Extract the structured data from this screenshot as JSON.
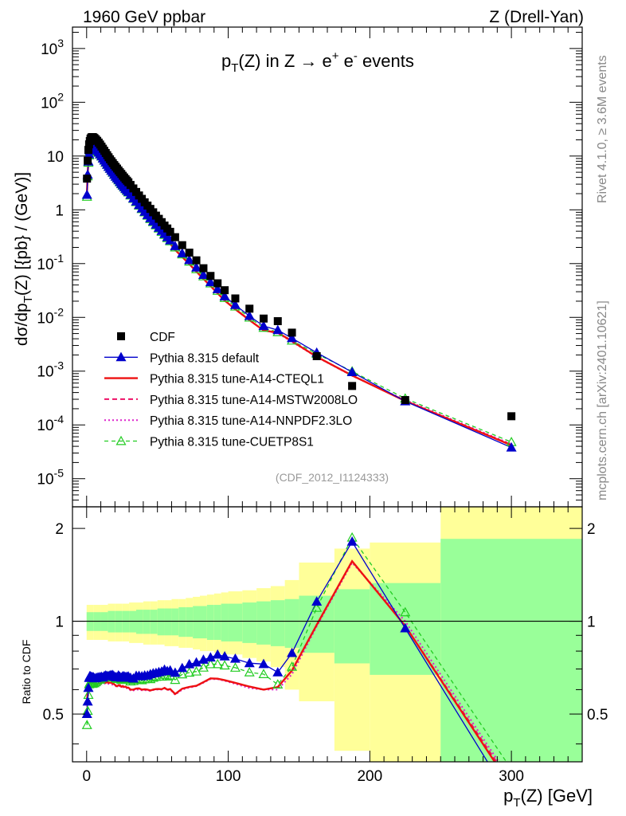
{
  "header": {
    "left": "1960 GeV ppbar",
    "right": "Z (Drell-Yan)",
    "title": "p_T(Z) in Z → e⁺ e⁻ events",
    "rivet": "Rivet 4.1.0, ≥ 3.6M events",
    "mcplots": "mcplots.cern.ch [arXiv:2401.10621]",
    "analysis": "(CDF_2012_I1124333)"
  },
  "colors": {
    "cdf": "#000000",
    "default": "#0000cc",
    "cteq": "#ee1111",
    "mstw": "#ee1166",
    "nnpdf": "#dd22cc",
    "cuetp": "#22cc22",
    "band_stat": "#99ff99",
    "band_tot": "#ffff99"
  },
  "chart_data": [
    {
      "type": "scatter",
      "name": "main",
      "title": "p_T(Z) in Z → e⁺ e⁻ events",
      "ylabel": "dσ/dp_T(Z) [{pb} / (GeV)]",
      "xlabel": "p_T(Z) [GeV]",
      "yscale": "log",
      "xlim": [
        -10,
        350
      ],
      "ylim": [
        3e-06,
        2500
      ],
      "x_ticks": [
        0,
        100,
        200,
        300
      ],
      "y_tick_labels": [
        "10^{-5}",
        "10^{-4}",
        "10^{-3}",
        "10^{-2}",
        "10^{-1}",
        "1",
        "10",
        "10^{2}",
        "10^{3}"
      ],
      "x": [
        0.25,
        0.75,
        1.25,
        1.75,
        2.25,
        2.75,
        3.25,
        3.75,
        4.25,
        4.75,
        5.5,
        6.5,
        7.5,
        8.5,
        9.5,
        10.5,
        11.5,
        12.5,
        13.5,
        14.5,
        15.5,
        16.5,
        17.5,
        18.5,
        19.5,
        20.5,
        21.5,
        22.5,
        23.5,
        24.5,
        25.5,
        26.5,
        27.5,
        28.5,
        29.5,
        31,
        33,
        35,
        37,
        39,
        41,
        43,
        45,
        47,
        49,
        51,
        53,
        55,
        57,
        59,
        62.5,
        67.5,
        72.5,
        77.5,
        82.5,
        87.5,
        92.5,
        97.5,
        105,
        115,
        125,
        135,
        145,
        162.5,
        187.5,
        225,
        300
      ],
      "cdf": [
        3.8,
        8.2,
        13.0,
        16.5,
        19.0,
        21.0,
        22.0,
        22.5,
        22.5,
        22.2,
        21.6,
        20.5,
        19.2,
        17.8,
        16.4,
        15.0,
        13.7,
        12.5,
        11.4,
        10.4,
        9.5,
        8.7,
        8.0,
        7.4,
        6.8,
        6.3,
        5.85,
        5.4,
        5.0,
        4.65,
        4.3,
        4.0,
        3.72,
        3.48,
        3.25,
        2.9,
        2.5,
        2.15,
        1.85,
        1.6,
        1.38,
        1.2,
        1.04,
        0.9,
        0.78,
        0.68,
        0.59,
        0.51,
        0.45,
        0.39,
        0.31,
        0.22,
        0.16,
        0.115,
        0.082,
        0.059,
        0.043,
        0.032,
        0.0225,
        0.0145,
        0.0095,
        0.0085,
        0.0052,
        0.0019,
        0.00053,
        0.00029,
        0.000145
      ],
      "series": [
        {
          "name": "Pythia 8.315 default",
          "key": "default",
          "values": [
            1.9,
            4.5,
            7.9,
            10.8,
            12.6,
            13.9,
            14.5,
            14.8,
            14.8,
            14.6,
            14.1,
            13.4,
            12.6,
            11.7,
            10.8,
            9.9,
            9.0,
            8.3,
            7.6,
            6.9,
            6.3,
            5.8,
            5.35,
            4.95,
            4.5,
            4.15,
            3.85,
            3.6,
            3.3,
            3.05,
            2.85,
            2.65,
            2.45,
            2.3,
            2.15,
            1.9,
            1.63,
            1.43,
            1.23,
            1.06,
            0.92,
            0.8,
            0.7,
            0.61,
            0.53,
            0.465,
            0.405,
            0.355,
            0.31,
            0.27,
            0.211,
            0.155,
            0.116,
            0.0845,
            0.0615,
            0.045,
            0.0335,
            0.0246,
            0.017,
            0.0106,
            0.0069,
            0.0058,
            0.0041,
            0.0022,
            0.00096,
            0.000275,
            3.8e-05
          ]
        },
        {
          "name": "Pythia 8.315 tune-A14-CTEQL1",
          "key": "cteq",
          "values": [
            2.1,
            4.8,
            8.1,
            10.9,
            12.6,
            13.7,
            14.1,
            14.3,
            14.2,
            14.0,
            13.5,
            12.8,
            12.0,
            11.2,
            10.3,
            9.5,
            8.7,
            7.9,
            7.2,
            6.6,
            6.0,
            5.5,
            5.05,
            4.65,
            4.25,
            3.9,
            3.6,
            3.35,
            3.1,
            2.85,
            2.65,
            2.45,
            2.28,
            2.12,
            1.98,
            1.74,
            1.5,
            1.3,
            1.12,
            0.96,
            0.83,
            0.72,
            0.62,
            0.54,
            0.47,
            0.41,
            0.355,
            0.31,
            0.27,
            0.235,
            0.18,
            0.133,
            0.098,
            0.071,
            0.052,
            0.0385,
            0.028,
            0.0206,
            0.0142,
            0.0089,
            0.0057,
            0.0052,
            0.0036,
            0.00185,
            0.00083,
            0.00028,
            4.2e-05
          ]
        },
        {
          "name": "Pythia 8.315 tune-A14-MSTW2008LO",
          "key": "mstw",
          "values": [
            2.05,
            4.7,
            8.0,
            10.8,
            12.5,
            13.7,
            14.1,
            14.3,
            14.2,
            14.0,
            13.5,
            12.8,
            12.0,
            11.2,
            10.3,
            9.5,
            8.7,
            7.9,
            7.2,
            6.6,
            6.0,
            5.5,
            5.05,
            4.65,
            4.25,
            3.9,
            3.6,
            3.35,
            3.1,
            2.85,
            2.65,
            2.45,
            2.28,
            2.12,
            1.98,
            1.74,
            1.5,
            1.3,
            1.12,
            0.96,
            0.83,
            0.72,
            0.62,
            0.54,
            0.47,
            0.41,
            0.355,
            0.31,
            0.27,
            0.235,
            0.18,
            0.133,
            0.098,
            0.071,
            0.052,
            0.0385,
            0.028,
            0.0206,
            0.0142,
            0.0089,
            0.0057,
            0.0052,
            0.0036,
            0.00185,
            0.00083,
            0.00028,
            4.3e-05
          ]
        },
        {
          "name": "Pythia 8.315 tune-A14-NNPDF2.3LO",
          "key": "nnpdf",
          "values": [
            2.0,
            4.6,
            7.9,
            10.7,
            12.4,
            13.6,
            14.0,
            14.2,
            14.1,
            13.9,
            13.4,
            12.7,
            11.9,
            11.1,
            10.2,
            9.4,
            8.6,
            7.85,
            7.15,
            6.55,
            5.95,
            5.45,
            5.0,
            4.6,
            4.2,
            3.88,
            3.58,
            3.32,
            3.08,
            2.84,
            2.63,
            2.44,
            2.27,
            2.11,
            1.97,
            1.73,
            1.49,
            1.29,
            1.11,
            0.955,
            0.825,
            0.715,
            0.618,
            0.538,
            0.468,
            0.408,
            0.354,
            0.309,
            0.269,
            0.234,
            0.179,
            0.132,
            0.0975,
            0.0708,
            0.0518,
            0.0383,
            0.0279,
            0.0205,
            0.0141,
            0.0088,
            0.0057,
            0.0051,
            0.0035,
            0.00183,
            0.00082,
            0.00029,
            4.4e-05
          ]
        },
        {
          "name": "Pythia 8.315 tune-CUETP8S1",
          "key": "cuetp",
          "values": [
            1.75,
            4.2,
            7.5,
            10.3,
            12.0,
            13.2,
            13.8,
            14.1,
            14.1,
            14.0,
            13.6,
            13.0,
            12.3,
            11.5,
            10.6,
            9.8,
            9.0,
            8.2,
            7.5,
            6.9,
            6.3,
            5.8,
            5.3,
            4.9,
            4.48,
            4.12,
            3.8,
            3.52,
            3.25,
            3.0,
            2.8,
            2.6,
            2.42,
            2.25,
            2.1,
            1.85,
            1.6,
            1.39,
            1.2,
            1.03,
            0.895,
            0.78,
            0.675,
            0.59,
            0.515,
            0.45,
            0.39,
            0.342,
            0.298,
            0.26,
            0.2,
            0.148,
            0.109,
            0.079,
            0.058,
            0.0428,
            0.0312,
            0.023,
            0.0159,
            0.0099,
            0.0064,
            0.0053,
            0.0037,
            0.0021,
            0.00099,
            0.00031,
            4.8e-05
          ]
        }
      ]
    },
    {
      "type": "line",
      "name": "ratio",
      "ylabel": "Ratio to CDF",
      "xlim": [
        -10,
        350
      ],
      "ylim": [
        0.35,
        2.35
      ],
      "y_ticks": [
        0.5,
        1,
        2
      ],
      "band_x_edges": [
        0,
        5,
        10,
        15,
        20,
        25,
        30,
        35,
        40,
        45,
        50,
        55,
        60,
        65,
        70,
        75,
        80,
        85,
        90,
        95,
        100,
        110,
        120,
        130,
        140,
        150,
        175,
        200,
        250,
        350
      ],
      "band_inner": [
        [
          0.93,
          1.07
        ],
        [
          0.93,
          1.07
        ],
        [
          0.93,
          1.07
        ],
        [
          0.92,
          1.08
        ],
        [
          0.92,
          1.08
        ],
        [
          0.92,
          1.08
        ],
        [
          0.92,
          1.08
        ],
        [
          0.91,
          1.09
        ],
        [
          0.91,
          1.09
        ],
        [
          0.91,
          1.09
        ],
        [
          0.9,
          1.1
        ],
        [
          0.9,
          1.1
        ],
        [
          0.9,
          1.1
        ],
        [
          0.89,
          1.11
        ],
        [
          0.89,
          1.11
        ],
        [
          0.88,
          1.12
        ],
        [
          0.88,
          1.12
        ],
        [
          0.87,
          1.13
        ],
        [
          0.87,
          1.13
        ],
        [
          0.86,
          1.14
        ],
        [
          0.86,
          1.14
        ],
        [
          0.85,
          1.15
        ],
        [
          0.84,
          1.16
        ],
        [
          0.83,
          1.17
        ],
        [
          0.82,
          1.18
        ],
        [
          0.79,
          1.21
        ],
        [
          0.73,
          1.27
        ],
        [
          0.67,
          1.33
        ],
        [
          0.35,
          1.85
        ]
      ],
      "band_outer": [
        [
          0.87,
          1.13
        ],
        [
          0.87,
          1.13
        ],
        [
          0.87,
          1.13
        ],
        [
          0.86,
          1.14
        ],
        [
          0.86,
          1.14
        ],
        [
          0.86,
          1.14
        ],
        [
          0.85,
          1.15
        ],
        [
          0.85,
          1.15
        ],
        [
          0.84,
          1.16
        ],
        [
          0.84,
          1.16
        ],
        [
          0.84,
          1.17
        ],
        [
          0.83,
          1.17
        ],
        [
          0.83,
          1.18
        ],
        [
          0.82,
          1.18
        ],
        [
          0.82,
          1.19
        ],
        [
          0.81,
          1.2
        ],
        [
          0.8,
          1.21
        ],
        [
          0.8,
          1.22
        ],
        [
          0.79,
          1.23
        ],
        [
          0.78,
          1.24
        ],
        [
          0.78,
          1.25
        ],
        [
          0.76,
          1.26
        ],
        [
          0.74,
          1.28
        ],
        [
          0.71,
          1.3
        ],
        [
          0.6,
          1.36
        ],
        [
          0.55,
          1.55
        ],
        [
          0.38,
          1.72
        ],
        [
          0.35,
          1.8
        ],
        [
          0.35,
          2.35
        ]
      ],
      "note": "ratio values computed as series / cdf"
    }
  ]
}
